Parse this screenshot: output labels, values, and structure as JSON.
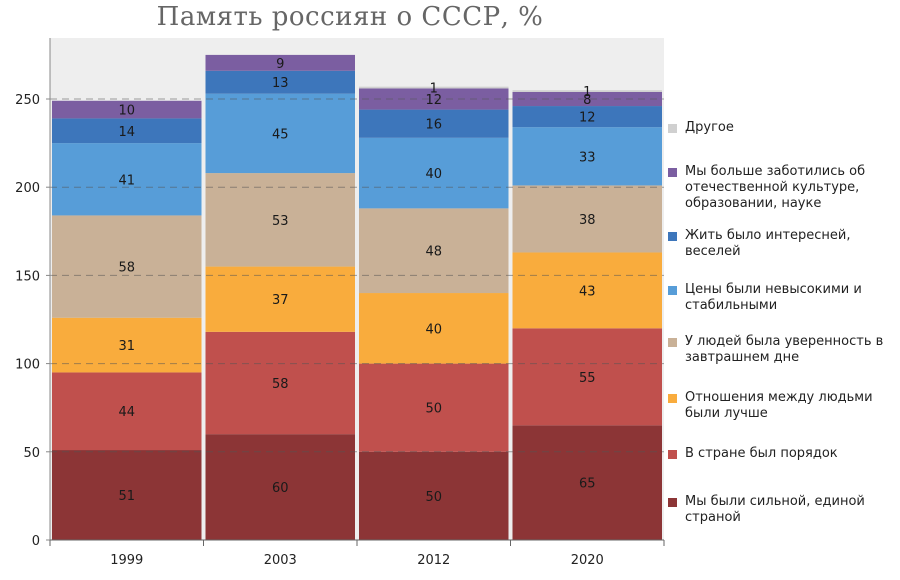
{
  "chart_data": {
    "type": "bar",
    "stacked": true,
    "title": "Память россиян о СССР, %",
    "xlabel": "",
    "ylabel": "",
    "categories": [
      "1999",
      "2003",
      "2012",
      "2020"
    ],
    "ylim": [
      0,
      275
    ],
    "yticks": [
      0,
      50,
      100,
      150,
      200,
      250
    ],
    "grid": "dashed horizontal",
    "background": "#eeeeee",
    "legend_position": "right",
    "series": [
      {
        "name": "Мы были сильной, единой страной",
        "color": "#8c3536",
        "values": [
          51,
          60,
          50,
          65
        ]
      },
      {
        "name": "В стране был порядок",
        "color": "#c0504d",
        "values": [
          44,
          58,
          50,
          55
        ]
      },
      {
        "name": "Отношения между людьми были лучше",
        "color": "#f9ac3d",
        "values": [
          31,
          37,
          40,
          43
        ]
      },
      {
        "name": "У людей была уверенность в завтрашнем дне",
        "color": "#c9b197",
        "values": [
          58,
          53,
          48,
          38
        ]
      },
      {
        "name": "Цены были невысокими и стабильными",
        "color": "#579dd8",
        "values": [
          41,
          45,
          40,
          33
        ]
      },
      {
        "name": "Жить было интересней, веселей",
        "color": "#3d76bb",
        "values": [
          14,
          13,
          16,
          12
        ]
      },
      {
        "name": "Мы больше заботились об отечественной культуре, образовании, науке",
        "color": "#7b5ea1",
        "values": [
          10,
          9,
          12,
          8
        ]
      },
      {
        "name": "Другое",
        "color": "#d0d0d0",
        "values": [
          null,
          null,
          1,
          1
        ]
      }
    ]
  }
}
